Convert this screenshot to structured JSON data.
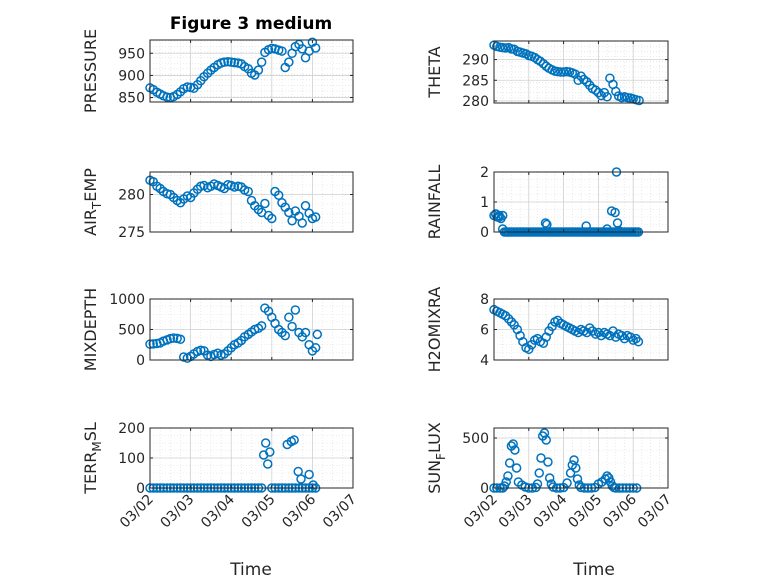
{
  "figure": {
    "title": "Figure 3 medium",
    "xlabel": "Time"
  },
  "style": {
    "marker_color": "#0072bd",
    "axis_color": "#262626",
    "grid_color": "#dcdcdc"
  },
  "chart_data": [
    {
      "type": "scatter",
      "ylabel": "PRESSURE",
      "ylabel_sub": "",
      "ylabel_suffix": "",
      "xlim": [
        "03/02",
        "03/07"
      ],
      "ylim": [
        840,
        980
      ],
      "yticks": [
        850,
        900,
        950
      ],
      "ytick_labels": [
        "850",
        "900",
        "950"
      ],
      "xticks": [
        "03/02",
        "03/03",
        "03/04",
        "03/05",
        "03/06",
        "03/07"
      ],
      "show_xticklabels": false,
      "grid": true,
      "x": [
        0.0,
        0.08,
        0.17,
        0.25,
        0.33,
        0.42,
        0.5,
        0.58,
        0.67,
        0.75,
        0.83,
        0.92,
        1.0,
        1.08,
        1.17,
        1.25,
        1.33,
        1.42,
        1.5,
        1.58,
        1.67,
        1.75,
        1.83,
        1.92,
        2.0,
        2.08,
        2.17,
        2.25,
        2.33,
        2.42,
        2.5,
        2.58,
        2.67,
        2.75,
        2.83,
        2.92,
        3.0,
        3.08,
        3.17,
        3.25,
        3.33,
        3.42,
        3.5,
        3.58,
        3.67,
        3.75,
        3.83,
        3.92,
        4.0,
        4.08
      ],
      "y": [
        872,
        868,
        862,
        858,
        854,
        851,
        850,
        852,
        857,
        863,
        870,
        874,
        873,
        871,
        879,
        888,
        897,
        905,
        912,
        918,
        924,
        928,
        930,
        931,
        930,
        929,
        928,
        926,
        920,
        915,
        905,
        901,
        912,
        930,
        952,
        958,
        961,
        960,
        957,
        955,
        918,
        930,
        950,
        965,
        970,
        960,
        940,
        955,
        975,
        962
      ]
    },
    {
      "type": "scatter",
      "ylabel": "THETA",
      "ylabel_sub": "",
      "ylabel_suffix": "",
      "xlim": [
        "03/02",
        "03/07"
      ],
      "ylim": [
        279.5,
        294.5
      ],
      "yticks": [
        280,
        285,
        290
      ],
      "ytick_labels": [
        "280",
        "285",
        "290"
      ],
      "xticks": [
        "03/02",
        "03/03",
        "03/04",
        "03/05",
        "03/06",
        "03/07"
      ],
      "show_xticklabels": false,
      "grid": true,
      "x": [
        0.0,
        0.08,
        0.17,
        0.25,
        0.33,
        0.42,
        0.5,
        0.58,
        0.67,
        0.75,
        0.83,
        0.92,
        1.0,
        1.08,
        1.17,
        1.25,
        1.33,
        1.42,
        1.5,
        1.58,
        1.67,
        1.75,
        1.83,
        1.92,
        2.0,
        2.08,
        2.17,
        2.25,
        2.33,
        2.42,
        2.5,
        2.58,
        2.67,
        2.75,
        2.83,
        2.92,
        3.0,
        3.08,
        3.17,
        3.25,
        3.33,
        3.42,
        3.5,
        3.58,
        3.67,
        3.75,
        3.83,
        3.92,
        4.0,
        4.08,
        4.17
      ],
      "y": [
        293.5,
        293.2,
        293.0,
        292.9,
        292.8,
        292.9,
        292.6,
        292.5,
        292.0,
        291.8,
        291.6,
        291.4,
        291.0,
        290.8,
        290.5,
        290.0,
        289.6,
        289.0,
        288.4,
        287.9,
        287.5,
        287.2,
        287.1,
        287.0,
        287.0,
        287.1,
        287.0,
        286.8,
        286.5,
        285.0,
        286.0,
        285.2,
        284.6,
        283.8,
        283.0,
        282.6,
        282.0,
        281.3,
        282.0,
        281.0,
        285.5,
        284.0,
        282.3,
        281.2,
        280.8,
        281.0,
        280.8,
        280.7,
        280.5,
        280.3,
        280.1
      ]
    },
    {
      "type": "scatter",
      "ylabel": "AIR",
      "ylabel_sub": "T",
      "ylabel_suffix": "EMP",
      "xlim": [
        "03/02",
        "03/07"
      ],
      "ylim": [
        275,
        283
      ],
      "yticks": [
        275,
        280
      ],
      "ytick_labels": [
        "275",
        "280"
      ],
      "xticks": [
        "03/02",
        "03/03",
        "03/04",
        "03/05",
        "03/06",
        "03/07"
      ],
      "show_xticklabels": false,
      "grid": true,
      "x": [
        0.0,
        0.08,
        0.17,
        0.25,
        0.33,
        0.42,
        0.5,
        0.58,
        0.67,
        0.75,
        0.83,
        0.92,
        1.0,
        1.08,
        1.17,
        1.25,
        1.33,
        1.42,
        1.5,
        1.58,
        1.67,
        1.75,
        1.83,
        1.92,
        2.0,
        2.08,
        2.17,
        2.25,
        2.33,
        2.42,
        2.5,
        2.58,
        2.67,
        2.75,
        2.83,
        2.92,
        3.0,
        3.08,
        3.17,
        3.25,
        3.33,
        3.42,
        3.5,
        3.58,
        3.67,
        3.75,
        3.83,
        3.92,
        4.0,
        4.08
      ],
      "y": [
        281.9,
        281.7,
        281.1,
        280.8,
        280.4,
        280.1,
        280.0,
        279.6,
        279.2,
        278.9,
        279.4,
        279.8,
        279.6,
        280.2,
        280.7,
        281.1,
        281.2,
        280.9,
        281.1,
        281.4,
        281.2,
        281.0,
        280.8,
        281.3,
        281.2,
        281.0,
        281.1,
        281.0,
        280.6,
        280.4,
        279.2,
        278.5,
        278.0,
        277.6,
        278.8,
        277.2,
        276.8,
        280.4,
        279.9,
        278.9,
        278.3,
        277.6,
        276.5,
        277.8,
        277.1,
        276.2,
        278.5,
        277.5,
        276.8,
        277.0
      ]
    },
    {
      "type": "scatter",
      "ylabel": "RAINFALL",
      "ylabel_sub": "",
      "ylabel_suffix": "",
      "xlim": [
        "03/02",
        "03/07"
      ],
      "ylim": [
        0,
        2
      ],
      "yticks": [
        0,
        1,
        2
      ],
      "ytick_labels": [
        "0",
        "1",
        "2"
      ],
      "xticks": [
        "03/02",
        "03/03",
        "03/04",
        "03/05",
        "03/06",
        "03/07"
      ],
      "show_xticklabels": false,
      "grid": true,
      "x": [
        0.0,
        0.05,
        0.1,
        0.15,
        0.2,
        0.25,
        0.3,
        0.35,
        0.4,
        0.45,
        0.5,
        0.55,
        0.6,
        0.65,
        0.7,
        0.75,
        0.8,
        0.85,
        0.9,
        0.95,
        1.0,
        1.05,
        1.1,
        1.15,
        1.2,
        1.25,
        1.3,
        1.35,
        1.4,
        1.45,
        1.5,
        1.55,
        1.6,
        1.65,
        1.7,
        1.75,
        1.8,
        1.85,
        1.9,
        1.95,
        2.0,
        2.05,
        2.1,
        2.15,
        2.2,
        2.25,
        2.3,
        2.35,
        2.4,
        2.45,
        2.5,
        2.55,
        2.6,
        2.65,
        2.7,
        2.75,
        2.8,
        2.85,
        2.9,
        2.95,
        3.0,
        3.05,
        3.1,
        3.15,
        3.2,
        3.25,
        3.3,
        3.35,
        3.4,
        3.45,
        3.5,
        3.55,
        3.6,
        3.65,
        3.7,
        3.75,
        3.8,
        3.85,
        3.9,
        3.95,
        4.0,
        4.05,
        4.1,
        4.15,
        0.05,
        0.15,
        0.25,
        1.48,
        1.52,
        2.65,
        3.25,
        3.38,
        3.48,
        3.55,
        3.52,
        3.58
      ],
      "y": [
        0.55,
        0.6,
        0.5,
        0.55,
        0.45,
        0.1,
        0,
        0,
        0,
        0,
        0,
        0,
        0,
        0,
        0,
        0,
        0,
        0,
        0,
        0,
        0,
        0,
        0,
        0,
        0,
        0,
        0,
        0,
        0,
        0,
        0,
        0,
        0,
        0,
        0,
        0,
        0,
        0,
        0,
        0,
        0,
        0,
        0,
        0,
        0,
        0,
        0,
        0,
        0,
        0,
        0,
        0,
        0,
        0,
        0,
        0,
        0,
        0,
        0,
        0,
        0,
        0,
        0,
        0,
        0,
        0,
        0,
        0,
        0,
        0,
        0,
        0,
        0,
        0,
        0,
        0,
        0,
        0,
        0,
        0,
        0,
        0,
        0,
        0,
        0.6,
        0.5,
        0.55,
        0.3,
        0.25,
        0.2,
        0.1,
        0.7,
        0.65,
        0.3,
        2.0,
        0.05
      ]
    },
    {
      "type": "scatter",
      "ylabel": "MIXDEPTH",
      "ylabel_sub": "",
      "ylabel_suffix": "",
      "xlim": [
        "03/02",
        "03/07"
      ],
      "ylim": [
        0,
        1000
      ],
      "yticks": [
        0,
        500,
        1000
      ],
      "ytick_labels": [
        "0",
        "500",
        "1000"
      ],
      "xticks": [
        "03/02",
        "03/03",
        "03/04",
        "03/05",
        "03/06",
        "03/07"
      ],
      "show_xticklabels": false,
      "grid": true,
      "x": [
        0.0,
        0.08,
        0.17,
        0.25,
        0.33,
        0.42,
        0.5,
        0.58,
        0.67,
        0.75,
        0.83,
        0.92,
        1.0,
        1.08,
        1.17,
        1.25,
        1.33,
        1.42,
        1.5,
        1.58,
        1.67,
        1.75,
        1.83,
        1.92,
        2.0,
        2.08,
        2.17,
        2.25,
        2.33,
        2.42,
        2.5,
        2.58,
        2.67,
        2.75,
        2.83,
        2.92,
        3.0,
        3.08,
        3.17,
        3.25,
        3.33,
        3.42,
        3.5,
        3.58,
        3.67,
        3.75,
        3.83,
        3.92,
        4.0,
        4.08,
        4.12
      ],
      "y": [
        260,
        265,
        270,
        280,
        310,
        330,
        350,
        360,
        355,
        340,
        50,
        30,
        60,
        100,
        140,
        160,
        150,
        80,
        60,
        90,
        110,
        80,
        100,
        150,
        200,
        250,
        280,
        320,
        380,
        420,
        460,
        500,
        520,
        560,
        850,
        800,
        700,
        600,
        500,
        450,
        400,
        700,
        550,
        820,
        450,
        380,
        450,
        250,
        150,
        200,
        420
      ]
    },
    {
      "type": "scatter",
      "ylabel": "H2OMIXRA",
      "ylabel_sub": "",
      "ylabel_suffix": "",
      "xlim": [
        "03/02",
        "03/07"
      ],
      "ylim": [
        4,
        8
      ],
      "yticks": [
        4,
        6,
        8
      ],
      "ytick_labels": [
        "4",
        "6",
        "8"
      ],
      "xticks": [
        "03/02",
        "03/03",
        "03/04",
        "03/05",
        "03/06",
        "03/07"
      ],
      "show_xticklabels": false,
      "grid": true,
      "x": [
        0.0,
        0.08,
        0.17,
        0.25,
        0.33,
        0.42,
        0.5,
        0.58,
        0.67,
        0.75,
        0.83,
        0.92,
        1.0,
        1.08,
        1.17,
        1.25,
        1.33,
        1.42,
        1.5,
        1.58,
        1.67,
        1.75,
        1.83,
        1.92,
        2.0,
        2.08,
        2.17,
        2.25,
        2.33,
        2.42,
        2.5,
        2.58,
        2.67,
        2.75,
        2.83,
        2.92,
        3.0,
        3.08,
        3.17,
        3.25,
        3.33,
        3.42,
        3.5,
        3.58,
        3.67,
        3.75,
        3.83,
        3.92,
        4.0,
        4.08,
        4.15
      ],
      "y": [
        7.3,
        7.2,
        7.1,
        7.0,
        6.9,
        6.7,
        6.5,
        6.3,
        6.0,
        5.6,
        5.2,
        4.8,
        4.7,
        5.0,
        5.3,
        5.4,
        5.2,
        5.1,
        5.5,
        5.9,
        6.2,
        6.5,
        6.6,
        6.4,
        6.3,
        6.2,
        6.1,
        6.0,
        5.9,
        5.8,
        6.0,
        5.9,
        5.8,
        6.1,
        5.9,
        5.7,
        5.8,
        5.6,
        5.8,
        5.7,
        5.6,
        5.9,
        5.5,
        5.7,
        5.6,
        5.4,
        5.6,
        5.5,
        5.3,
        5.4,
        5.2
      ]
    },
    {
      "type": "scatter",
      "ylabel": "TERR",
      "ylabel_sub": "M",
      "ylabel_suffix": "SL",
      "xlim": [
        "03/02",
        "03/07"
      ],
      "ylim": [
        0,
        200
      ],
      "yticks": [
        0,
        100,
        200
      ],
      "ytick_labels": [
        "0",
        "100",
        "200"
      ],
      "xticks": [
        "03/02",
        "03/03",
        "03/04",
        "03/05",
        "03/06",
        "03/07"
      ],
      "show_xticklabels": true,
      "grid": true,
      "x": [
        0.0,
        0.08,
        0.17,
        0.25,
        0.33,
        0.42,
        0.5,
        0.58,
        0.67,
        0.75,
        0.83,
        0.92,
        1.0,
        1.08,
        1.17,
        1.25,
        1.33,
        1.42,
        1.5,
        1.58,
        1.67,
        1.75,
        1.83,
        1.92,
        2.0,
        2.08,
        2.17,
        2.25,
        2.33,
        2.42,
        2.5,
        2.58,
        2.67,
        2.75,
        3.0,
        3.08,
        3.17,
        3.25,
        3.33,
        3.42,
        3.5,
        3.58,
        3.67,
        3.75,
        3.83,
        3.92,
        4.0,
        4.08,
        2.8,
        2.85,
        2.9,
        2.95,
        3.38,
        3.48,
        3.55,
        3.65,
        3.72,
        3.92,
        4.02
      ],
      "y": [
        0,
        0,
        0,
        0,
        0,
        0,
        0,
        0,
        0,
        0,
        0,
        0,
        0,
        0,
        0,
        0,
        0,
        0,
        0,
        0,
        0,
        0,
        0,
        0,
        0,
        0,
        0,
        0,
        0,
        0,
        0,
        0,
        0,
        0,
        0,
        0,
        0,
        0,
        0,
        0,
        0,
        0,
        0,
        0,
        0,
        0,
        0,
        0,
        110,
        150,
        80,
        120,
        145,
        155,
        160,
        55,
        30,
        45,
        10
      ]
    },
    {
      "type": "scatter",
      "ylabel": "SUN",
      "ylabel_sub": "F",
      "ylabel_suffix": "LUX",
      "xlim": [
        "03/02",
        "03/07"
      ],
      "ylim": [
        0,
        600
      ],
      "yticks": [
        0,
        500
      ],
      "ytick_labels": [
        "0",
        "500"
      ],
      "xticks": [
        "03/02",
        "03/03",
        "03/04",
        "03/05",
        "03/06",
        "03/07"
      ],
      "show_xticklabels": true,
      "grid": true,
      "x": [
        0.0,
        0.08,
        0.17,
        0.25,
        0.3,
        0.35,
        0.4,
        0.45,
        0.5,
        0.55,
        0.6,
        0.65,
        0.7,
        0.8,
        0.9,
        1.0,
        1.1,
        1.2,
        1.25,
        1.3,
        1.35,
        1.4,
        1.45,
        1.5,
        1.55,
        1.6,
        1.65,
        1.7,
        1.8,
        1.9,
        2.0,
        2.1,
        2.2,
        2.25,
        2.3,
        2.35,
        2.4,
        2.45,
        2.5,
        2.6,
        2.7,
        2.8,
        2.9,
        3.0,
        3.1,
        3.2,
        3.25,
        3.3,
        3.35,
        3.4,
        3.45,
        3.5,
        3.6,
        3.7,
        3.8,
        3.9,
        4.0,
        4.1
      ],
      "y": [
        0,
        0,
        0,
        0,
        20,
        60,
        120,
        250,
        420,
        440,
        380,
        200,
        60,
        30,
        10,
        0,
        0,
        5,
        40,
        150,
        300,
        520,
        550,
        480,
        260,
        100,
        40,
        10,
        0,
        0,
        5,
        50,
        150,
        230,
        280,
        200,
        90,
        30,
        5,
        0,
        0,
        0,
        5,
        40,
        60,
        90,
        120,
        100,
        60,
        20,
        5,
        0,
        0,
        0,
        0,
        0,
        0,
        0
      ]
    }
  ]
}
